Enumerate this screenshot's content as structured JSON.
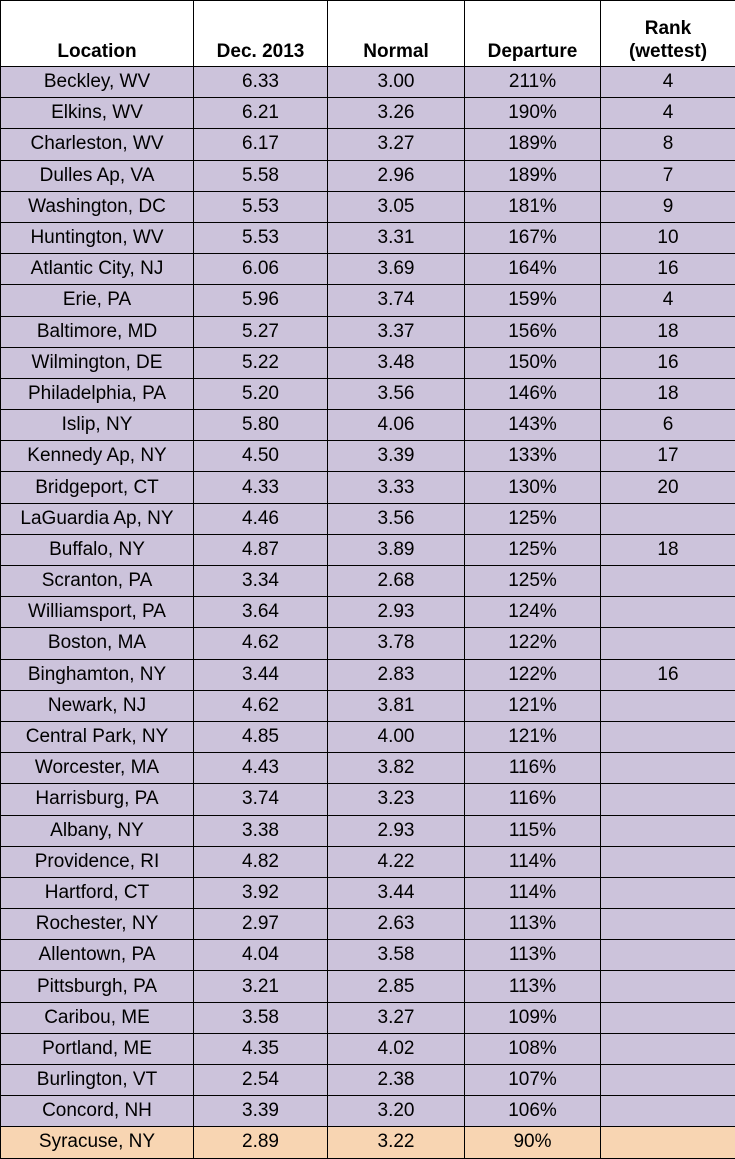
{
  "table": {
    "headers": [
      "Location",
      "Dec. 2013",
      "Normal",
      "Departure",
      "Rank (wettest)"
    ],
    "rows": [
      [
        "Beckley, WV",
        "6.33",
        "3.00",
        "211%",
        "4"
      ],
      [
        "Elkins, WV",
        "6.21",
        "3.26",
        "190%",
        "4"
      ],
      [
        "Charleston, WV",
        "6.17",
        "3.27",
        "189%",
        "8"
      ],
      [
        "Dulles Ap, VA",
        "5.58",
        "2.96",
        "189%",
        "7"
      ],
      [
        "Washington, DC",
        "5.53",
        "3.05",
        "181%",
        "9"
      ],
      [
        "Huntington, WV",
        "5.53",
        "3.31",
        "167%",
        "10"
      ],
      [
        "Atlantic City, NJ",
        "6.06",
        "3.69",
        "164%",
        "16"
      ],
      [
        "Erie, PA",
        "5.96",
        "3.74",
        "159%",
        "4"
      ],
      [
        "Baltimore, MD",
        "5.27",
        "3.37",
        "156%",
        "18"
      ],
      [
        "Wilmington, DE",
        "5.22",
        "3.48",
        "150%",
        "16"
      ],
      [
        "Philadelphia, PA",
        "5.20",
        "3.56",
        "146%",
        "18"
      ],
      [
        "Islip, NY",
        "5.80",
        "4.06",
        "143%",
        "6"
      ],
      [
        "Kennedy Ap, NY",
        "4.50",
        "3.39",
        "133%",
        "17"
      ],
      [
        "Bridgeport, CT",
        "4.33",
        "3.33",
        "130%",
        "20"
      ],
      [
        "LaGuardia Ap, NY",
        "4.46",
        "3.56",
        "125%",
        null
      ],
      [
        "Buffalo, NY",
        "4.87",
        "3.89",
        "125%",
        "18"
      ],
      [
        "Scranton, PA",
        "3.34",
        "2.68",
        "125%",
        null
      ],
      [
        "Williamsport, PA",
        "3.64",
        "2.93",
        "124%",
        null
      ],
      [
        "Boston, MA",
        "4.62",
        "3.78",
        "122%",
        null
      ],
      [
        "Binghamton, NY",
        "3.44",
        "2.83",
        "122%",
        "16"
      ],
      [
        "Newark, NJ",
        "4.62",
        "3.81",
        "121%",
        null
      ],
      [
        "Central Park, NY",
        "4.85",
        "4.00",
        "121%",
        null
      ],
      [
        "Worcester, MA",
        "4.43",
        "3.82",
        "116%",
        null
      ],
      [
        "Harrisburg, PA",
        "3.74",
        "3.23",
        "116%",
        null
      ],
      [
        "Albany, NY",
        "3.38",
        "2.93",
        "115%",
        null
      ],
      [
        "Providence, RI",
        "4.82",
        "4.22",
        "114%",
        null
      ],
      [
        "Hartford, CT",
        "3.92",
        "3.44",
        "114%",
        null
      ],
      [
        "Rochester, NY",
        "2.97",
        "2.63",
        "113%",
        null
      ],
      [
        "Allentown, PA",
        "4.04",
        "3.58",
        "113%",
        null
      ],
      [
        "Pittsburgh, PA",
        "3.21",
        "2.85",
        "113%",
        null
      ],
      [
        "Caribou, ME",
        "3.58",
        "3.27",
        "109%",
        null
      ],
      [
        "Portland, ME",
        "4.35",
        "4.02",
        "108%",
        null
      ],
      [
        "Burlington, VT",
        "2.54",
        "2.38",
        "107%",
        null
      ],
      [
        "Concord, NH",
        "3.39",
        "3.20",
        "106%",
        null
      ],
      [
        "Syracuse, NY",
        "2.89",
        "3.22",
        "90%",
        null
      ]
    ]
  }
}
